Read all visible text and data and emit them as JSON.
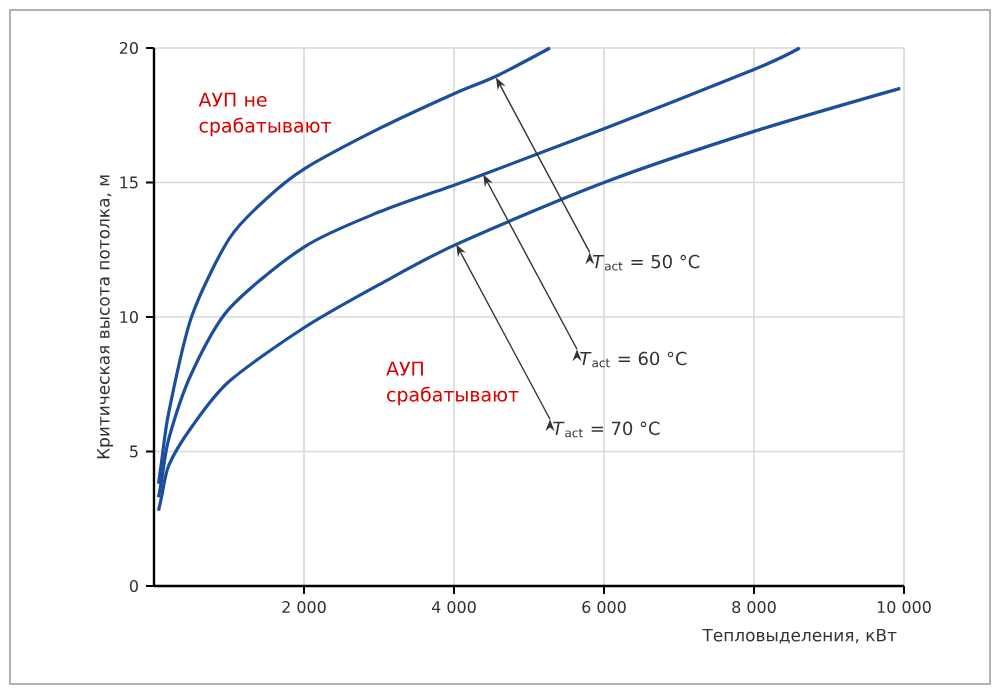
{
  "chart_data": {
    "type": "line",
    "xlabel": "Тепловыделения, кВт",
    "ylabel": "Критическая высота потолка, м",
    "xlim": [
      0,
      10000
    ],
    "ylim": [
      0,
      20
    ],
    "xticks": [
      {
        "value": 2000,
        "label": "2 000"
      },
      {
        "value": 4000,
        "label": "4 000"
      },
      {
        "value": 6000,
        "label": "6 000"
      },
      {
        "value": 8000,
        "label": "8 000"
      },
      {
        "value": 10000,
        "label": "10 000"
      }
    ],
    "yticks": [
      0,
      5,
      10,
      15,
      20
    ],
    "grid": true,
    "line_style": "solid",
    "marker": "none",
    "series": [
      {
        "color": "#1b4f9c",
        "x": [
          60,
          100,
          200,
          500,
          1000,
          1500,
          2000,
          3000,
          4000,
          4560,
          5280
        ],
        "values": [
          3.8,
          4.6,
          6.5,
          10.0,
          12.9,
          14.4,
          15.5,
          17.0,
          18.3,
          18.95,
          20
        ]
      },
      {
        "color": "#1b4f9c",
        "x": [
          60,
          100,
          200,
          500,
          1000,
          2000,
          3000,
          4000,
          4390,
          6000,
          8000,
          8610
        ],
        "values": [
          3.3,
          3.9,
          5.5,
          7.9,
          10.3,
          12.6,
          13.9,
          14.9,
          15.3,
          17.0,
          19.2,
          20
        ]
      },
      {
        "color": "#1b4f9c",
        "x": [
          60,
          100,
          200,
          500,
          1000,
          2000,
          3000,
          4030,
          6000,
          8000,
          9950
        ],
        "values": [
          2.8,
          3.3,
          4.5,
          5.9,
          7.6,
          9.6,
          11.2,
          12.7,
          15.0,
          16.9,
          18.5
        ]
      }
    ],
    "annotations": [
      "АУП не срабатывают",
      "АУП срабатывают",
      {
        "text": "*T*$_{act}$ = 50 °C",
        "x": 4560,
        "y": 18.9
      },
      {
        "text": "*T*$_{act}$ = 60 °C",
        "x": 4390,
        "y": 15.3
      },
      {
        "text": "*T*$_{act}$ = 70 °C",
        "x": 4030,
        "y": 12.7
      }
    ]
  }
}
